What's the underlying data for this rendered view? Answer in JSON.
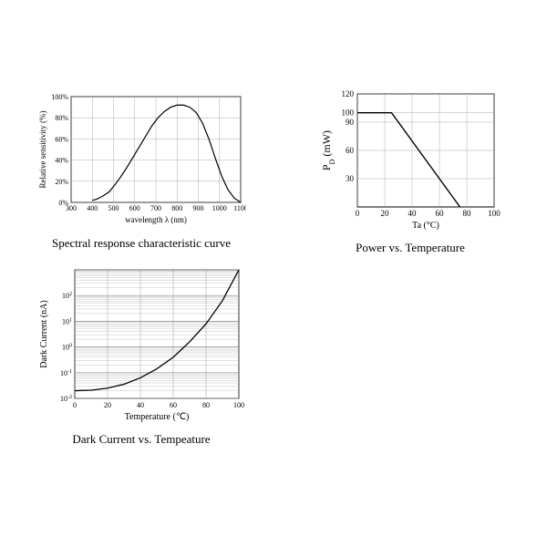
{
  "spectral": {
    "type": "line",
    "caption": "Spectral response characteristic curve",
    "xlabel": "wavelength  λ  (nm)",
    "ylabel": "Relative sensitivity  (%)",
    "xlim": [
      300,
      1100
    ],
    "ylim": [
      0,
      100
    ],
    "xticks": [
      300,
      400,
      500,
      600,
      700,
      800,
      900,
      1000,
      1100
    ],
    "yticks": [
      0,
      20,
      40,
      60,
      80,
      100
    ],
    "ytick_labels": [
      "0%",
      "20%",
      "40%",
      "60%",
      "80%",
      "100%"
    ],
    "grid_color": "#999999",
    "axis_color": "#000000",
    "line_color": "#000000",
    "line_width": 1.2,
    "background_color": "#ffffff",
    "label_fontsize": 9,
    "tick_fontsize": 8,
    "data": [
      [
        400,
        2
      ],
      [
        420,
        3
      ],
      [
        450,
        6
      ],
      [
        480,
        10
      ],
      [
        500,
        15
      ],
      [
        530,
        23
      ],
      [
        560,
        32
      ],
      [
        590,
        42
      ],
      [
        620,
        52
      ],
      [
        650,
        62
      ],
      [
        680,
        72
      ],
      [
        710,
        80
      ],
      [
        740,
        86
      ],
      [
        770,
        90
      ],
      [
        800,
        92
      ],
      [
        830,
        92
      ],
      [
        860,
        90
      ],
      [
        890,
        85
      ],
      [
        920,
        75
      ],
      [
        950,
        60
      ],
      [
        980,
        42
      ],
      [
        1010,
        25
      ],
      [
        1040,
        12
      ],
      [
        1070,
        4
      ],
      [
        1100,
        0
      ]
    ]
  },
  "power": {
    "type": "line",
    "caption": "Power vs. Temperature",
    "xlabel": "Ta       (°C)",
    "ylabel": "P",
    "ylabel_sub": "D",
    "ylabel_unit": " (mW)",
    "xlim": [
      0,
      100
    ],
    "ylim": [
      0,
      120
    ],
    "xticks": [
      0,
      20,
      40,
      60,
      80,
      100
    ],
    "yticks": [
      30,
      60,
      90,
      100,
      120
    ],
    "grid_color": "#999999",
    "axis_color": "#000000",
    "line_color": "#000000",
    "line_width": 1.4,
    "background_color": "#ffffff",
    "label_fontsize": 11,
    "tick_fontsize": 9,
    "data": [
      [
        0,
        100
      ],
      [
        25,
        100
      ],
      [
        75,
        0
      ]
    ]
  },
  "dark": {
    "type": "semilogy",
    "caption": "Dark Current vs. Tempeature",
    "xlabel": "Temperature (℃)",
    "ylabel": "Dark Current (nA)",
    "xlim": [
      0,
      100
    ],
    "ylim_exp": [
      -2,
      3
    ],
    "xticks": [
      0,
      20,
      40,
      60,
      80,
      100
    ],
    "ytick_exps": [
      -2,
      -1,
      0,
      1,
      2
    ],
    "ytick_labels_base": "10",
    "log_minor": [
      2,
      3,
      4,
      5,
      6,
      7,
      8,
      9
    ],
    "grid_color": "#888888",
    "minor_grid_color": "#aaaaaa",
    "axis_color": "#000000",
    "line_color": "#000000",
    "line_width": 1.3,
    "background_color": "#ffffff",
    "label_fontsize": 10,
    "tick_fontsize": 8,
    "data": [
      [
        0,
        -1.7
      ],
      [
        10,
        -1.68
      ],
      [
        20,
        -1.6
      ],
      [
        30,
        -1.45
      ],
      [
        40,
        -1.2
      ],
      [
        50,
        -0.85
      ],
      [
        60,
        -0.4
      ],
      [
        70,
        0.2
      ],
      [
        80,
        0.9
      ],
      [
        90,
        1.8
      ],
      [
        100,
        3.0
      ]
    ]
  }
}
